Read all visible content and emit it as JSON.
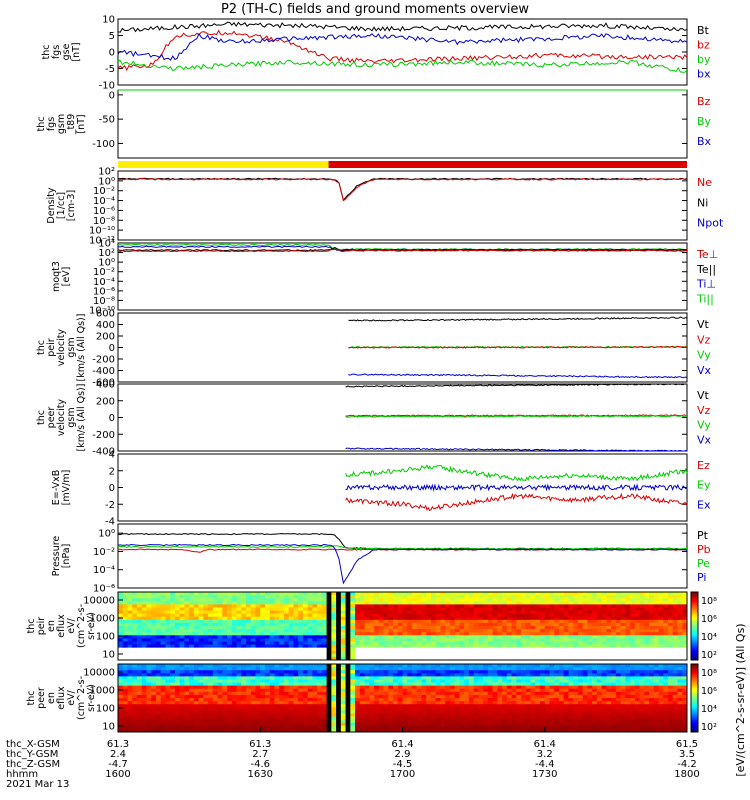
{
  "title": "P2 (TH-C) fields and ground moments overview",
  "colors": {
    "black": "#000000",
    "red": "#dd0000",
    "green": "#00cc00",
    "blue": "#0000cc",
    "yellow": "#ffee00"
  },
  "chart_data": [
    {
      "type": "line",
      "ylabel": [
        "thc",
        "fgs",
        "gse",
        "[nT]"
      ],
      "ylim": [
        -10,
        10
      ],
      "ticks": [
        {
          "v": 10,
          "t": "10"
        },
        {
          "v": 5,
          "t": "5"
        },
        {
          "v": 0,
          "t": "0"
        },
        {
          "v": -5,
          "t": "-5"
        },
        {
          "v": -10,
          "t": "-10"
        }
      ],
      "legend": [
        {
          "label": "Bt",
          "color": "black"
        },
        {
          "label": "bz",
          "color": "red"
        },
        {
          "label": "by",
          "color": "green"
        },
        {
          "label": "bx",
          "color": "blue"
        }
      ],
      "series": [
        {
          "name": "Bt",
          "color": "black",
          "x": [
            0,
            0.08,
            0.2,
            0.35,
            0.45,
            0.55,
            0.7,
            0.85,
            1
          ],
          "y": [
            6.5,
            7.3,
            8.5,
            7.8,
            7.0,
            7.2,
            7.6,
            8.1,
            6.5
          ]
        },
        {
          "name": "bz",
          "color": "red",
          "x": [
            0,
            0.06,
            0.1,
            0.2,
            0.3,
            0.37,
            0.45,
            0.6,
            0.75,
            0.9,
            1
          ],
          "y": [
            -5,
            -4,
            5,
            6,
            3,
            -2,
            -3,
            -2,
            -1,
            -1.5,
            -1.5
          ]
        },
        {
          "name": "by",
          "color": "green",
          "x": [
            0,
            0.1,
            0.2,
            0.3,
            0.45,
            0.6,
            0.75,
            0.9,
            1
          ],
          "y": [
            -3,
            -5,
            -4,
            -3,
            -4,
            -3,
            -4,
            -3,
            -6
          ]
        },
        {
          "name": "bx",
          "color": "blue",
          "x": [
            0,
            0.1,
            0.14,
            0.2,
            0.3,
            0.45,
            0.6,
            0.75,
            0.85,
            1
          ],
          "y": [
            0,
            -2,
            5,
            3,
            4,
            5,
            3,
            4,
            5,
            3
          ]
        }
      ]
    },
    {
      "type": "line",
      "ylabel": [
        "thc",
        "fgs",
        "gsm",
        "_t89",
        "[nT]"
      ],
      "ylim": [
        -130,
        10
      ],
      "ticks": [
        {
          "v": 0,
          "t": "0"
        },
        {
          "v": -50,
          "t": "-50"
        },
        {
          "v": -100,
          "t": "-100"
        }
      ],
      "legend": [
        {
          "label": "Bz",
          "color": "red"
        },
        {
          "label": "By",
          "color": "green"
        },
        {
          "label": "Bx",
          "color": "blue"
        }
      ],
      "series": [
        {
          "name": "By",
          "color": "green",
          "x": [
            0,
            0.03,
            0.1,
            0.3,
            0.5,
            0.7,
            0.9,
            1
          ],
          "y": [
            15,
            18,
            20,
            19,
            20,
            19,
            20,
            18
          ]
        }
      ]
    },
    {
      "type": "bar",
      "segments": [
        {
          "from": 0,
          "to": 0.37,
          "color": "yellow"
        },
        {
          "from": 0.37,
          "to": 1,
          "color": "red"
        }
      ]
    },
    {
      "type": "line",
      "scale": "log",
      "ylabel": [
        "Density",
        "[1/cc]",
        "[cm-3]"
      ],
      "ylim": [
        -12,
        2
      ],
      "ticks": [
        {
          "v": 2,
          "t": "10²"
        },
        {
          "v": 0,
          "t": "10⁰"
        },
        {
          "v": -2,
          "t": "10⁻²"
        },
        {
          "v": -4,
          "t": "10⁻⁴"
        },
        {
          "v": -6,
          "t": "10⁻⁶"
        },
        {
          "v": -8,
          "t": "10⁻⁸"
        },
        {
          "v": -10,
          "t": "10⁻¹⁰"
        },
        {
          "v": -12,
          "t": "10⁻¹²"
        }
      ],
      "legend": [
        {
          "label": "Ne",
          "color": "red"
        },
        {
          "label": "Ni",
          "color": "black"
        },
        {
          "label": "Npot",
          "color": "blue"
        }
      ],
      "series": [
        {
          "name": "Ni",
          "color": "black",
          "x": [
            0,
            0.37,
            0.38,
            0.39,
            0.395,
            0.42,
            0.45,
            1
          ],
          "y": [
            0.4,
            0.4,
            0.2,
            -0.4,
            -4,
            -1,
            0.4,
            0.4
          ]
        },
        {
          "name": "Ne",
          "color": "red",
          "x": [
            0,
            0.37,
            0.38,
            0.39,
            0.395,
            0.42,
            0.45,
            1
          ],
          "y": [
            0.3,
            0.3,
            0.1,
            -0.6,
            -4.2,
            -1.2,
            0.3,
            0.3
          ]
        }
      ]
    },
    {
      "type": "line",
      "scale": "log",
      "ylabel": [
        "moqt3",
        "[eV]"
      ],
      "ylim": [
        -10,
        4
      ],
      "ticks": [
        {
          "v": 4,
          "t": "10⁴"
        },
        {
          "v": 2,
          "t": "10²"
        },
        {
          "v": 0,
          "t": "10⁰"
        },
        {
          "v": -2,
          "t": "10⁻²"
        },
        {
          "v": -4,
          "t": "10⁻⁴"
        },
        {
          "v": -6,
          "t": "10⁻⁶"
        },
        {
          "v": -8,
          "t": "10⁻⁸"
        },
        {
          "v": -10,
          "t": "10⁻¹⁰"
        }
      ],
      "legend": [
        {
          "label": "Te⊥",
          "color": "red"
        },
        {
          "label": "Te||",
          "color": "black"
        },
        {
          "label": "Ti⊥",
          "color": "blue"
        },
        {
          "label": "Ti||",
          "color": "green"
        }
      ],
      "series": [
        {
          "name": "Ti||",
          "color": "green",
          "x": [
            0,
            0.37,
            0.38,
            0.395,
            0.4,
            1
          ],
          "y": [
            3.6,
            3.6,
            2.8,
            2.6,
            2.7,
            2.7
          ]
        },
        {
          "name": "Ti⊥",
          "color": "blue",
          "x": [
            0,
            0.37,
            0.38,
            0.395,
            0.4,
            1
          ],
          "y": [
            3.2,
            3.2,
            2.6,
            2.5,
            2.6,
            2.6
          ]
        },
        {
          "name": "Te||",
          "color": "black",
          "x": [
            0,
            0.37,
            0.38,
            0.395,
            0.4,
            1
          ],
          "y": [
            2.5,
            2.5,
            3.0,
            2.3,
            2.5,
            2.5
          ]
        },
        {
          "name": "Te⊥",
          "color": "red",
          "x": [
            0,
            0.37,
            0.38,
            0.395,
            0.4,
            1
          ],
          "y": [
            2.3,
            2.3,
            2.8,
            2.2,
            2.4,
            2.4
          ]
        }
      ]
    },
    {
      "type": "line",
      "ylabel": [
        "thc",
        "peir",
        "velocity",
        "gsm",
        "[km/s (All Qs)]"
      ],
      "ylim": [
        -600,
        600
      ],
      "ticks": [
        {
          "v": 600,
          "t": "600"
        },
        {
          "v": 400,
          "t": "400"
        },
        {
          "v": 200,
          "t": "200"
        },
        {
          "v": 0,
          "t": "0"
        },
        {
          "v": -200,
          "t": "-200"
        },
        {
          "v": -400,
          "t": "-400"
        },
        {
          "v": -600,
          "t": "-600"
        }
      ],
      "legend": [
        {
          "label": "Vt",
          "color": "black"
        },
        {
          "label": "Vz",
          "color": "red"
        },
        {
          "label": "Vy",
          "color": "green"
        },
        {
          "label": "Vx",
          "color": "blue"
        }
      ],
      "series": [
        {
          "name": "Vt",
          "color": "black",
          "x": [
            0.405,
            0.6,
            0.8,
            1
          ],
          "y": [
            470,
            480,
            500,
            520
          ]
        },
        {
          "name": "Vy",
          "color": "green",
          "x": [
            0.405,
            1
          ],
          "y": [
            5,
            10
          ]
        },
        {
          "name": "Vz",
          "color": "red",
          "x": [
            0.405,
            0.6,
            1
          ],
          "y": [
            0,
            0,
            10
          ]
        },
        {
          "name": "Vx",
          "color": "blue",
          "x": [
            0.405,
            0.6,
            0.8,
            1
          ],
          "y": [
            -470,
            -480,
            -500,
            -520
          ]
        }
      ]
    },
    {
      "type": "line",
      "ylabel": [
        "thc",
        "peer",
        "velocity",
        "gsm",
        "[km/s (All Qs)]"
      ],
      "ylim": [
        -400,
        400
      ],
      "ticks": [
        {
          "v": 400,
          "t": "400"
        },
        {
          "v": 200,
          "t": "200"
        },
        {
          "v": 0,
          "t": "0"
        },
        {
          "v": -200,
          "t": "-200"
        },
        {
          "v": -400,
          "t": "-400"
        }
      ],
      "legend": [
        {
          "label": "Vt",
          "color": "black"
        },
        {
          "label": "Vz",
          "color": "red"
        },
        {
          "label": "Vy",
          "color": "green"
        },
        {
          "label": "Vx",
          "color": "blue"
        }
      ],
      "series": [
        {
          "name": "Vt",
          "color": "black",
          "x": [
            0.4,
            0.6,
            0.8,
            1
          ],
          "y": [
            370,
            380,
            390,
            400
          ]
        },
        {
          "name": "Vz",
          "color": "red",
          "x": [
            0.4,
            1
          ],
          "y": [
            20,
            25
          ]
        },
        {
          "name": "Vy",
          "color": "green",
          "x": [
            0.4,
            1
          ],
          "y": [
            10,
            15
          ]
        },
        {
          "name": "Vx",
          "color": "blue",
          "x": [
            0.4,
            0.6,
            0.8,
            1
          ],
          "y": [
            -370,
            -380,
            -390,
            -400
          ]
        }
      ]
    },
    {
      "type": "line",
      "ylabel": [
        "E=-VxB",
        "[mV/m]"
      ],
      "ylim": [
        -4,
        4
      ],
      "ticks": [
        {
          "v": 4,
          "t": "4"
        },
        {
          "v": 2,
          "t": "2"
        },
        {
          "v": 0,
          "t": "0"
        },
        {
          "v": -2,
          "t": "-2"
        },
        {
          "v": -4,
          "t": "-4"
        }
      ],
      "legend": [
        {
          "label": "Ez",
          "color": "red"
        },
        {
          "label": "Ey",
          "color": "green"
        },
        {
          "label": "Ex",
          "color": "blue"
        }
      ],
      "series": [
        {
          "name": "Ey",
          "color": "green",
          "x": [
            0.4,
            0.5,
            0.55,
            0.6,
            0.7,
            0.8,
            0.9,
            1
          ],
          "y": [
            1.5,
            2,
            2.5,
            2,
            1,
            1.5,
            1,
            2
          ]
        },
        {
          "name": "Ex",
          "color": "blue",
          "x": [
            0.4,
            1
          ],
          "y": [
            0,
            0
          ]
        },
        {
          "name": "Ez",
          "color": "red",
          "x": [
            0.4,
            0.5,
            0.55,
            0.6,
            0.7,
            0.8,
            0.9,
            1
          ],
          "y": [
            -1.5,
            -2,
            -2.5,
            -2,
            -1,
            -1.5,
            -1,
            -2
          ]
        }
      ]
    },
    {
      "type": "line",
      "scale": "log",
      "ylabel": [
        "Pressure",
        "[nPa]"
      ],
      "ylim": [
        -6,
        1
      ],
      "ticks": [
        {
          "v": 0,
          "t": "10⁰"
        },
        {
          "v": -2,
          "t": "10⁻²"
        },
        {
          "v": -4,
          "t": "10⁻⁴"
        },
        {
          "v": -6,
          "t": "10⁻⁶"
        }
      ],
      "legend": [
        {
          "label": "Pt",
          "color": "black"
        },
        {
          "label": "Pb",
          "color": "red"
        },
        {
          "label": "Pe",
          "color": "green"
        },
        {
          "label": "Pi",
          "color": "blue"
        }
      ],
      "series": [
        {
          "name": "Pt",
          "color": "black",
          "x": [
            0,
            0.37,
            0.38,
            0.39,
            0.4,
            0.45,
            1
          ],
          "y": [
            -0.1,
            -0.1,
            -0.2,
            -0.8,
            -1.6,
            -1.7,
            -1.7
          ]
        },
        {
          "name": "Pb",
          "color": "red",
          "x": [
            0,
            0.12,
            0.14,
            0.16,
            0.37,
            0.4,
            1
          ],
          "y": [
            -1.8,
            -1.8,
            -2.1,
            -1.8,
            -1.8,
            -1.8,
            -1.8
          ]
        },
        {
          "name": "Pe",
          "color": "green",
          "x": [
            0,
            0.37,
            0.39,
            0.4,
            0.45,
            1
          ],
          "y": [
            -1.5,
            -1.5,
            -1.4,
            -1.6,
            -1.7,
            -1.7
          ]
        },
        {
          "name": "Pi",
          "color": "blue",
          "x": [
            0,
            0.37,
            0.38,
            0.39,
            0.395,
            0.42,
            0.45,
            1
          ],
          "y": [
            -1.3,
            -1.3,
            -1.5,
            -3,
            -5.6,
            -3,
            -1.8,
            -1.8
          ]
        }
      ]
    },
    {
      "type": "heatmap",
      "ylabel": [
        "thc",
        "peir",
        "en",
        "eflux",
        "eV/",
        "(cm^2-s-",
        "sr-eV)"
      ],
      "yticks": [
        "10000",
        "1000",
        "100",
        "10"
      ],
      "colorbar_labels": [
        "10⁸",
        "10⁶",
        "10⁴",
        "10²"
      ]
    },
    {
      "type": "heatmap",
      "ylabel": [
        "thc",
        "peer",
        "en",
        "eflux",
        "eV/",
        "(cm^2-s-",
        "sr-eV)"
      ],
      "yticks": [
        "10000",
        "1000",
        "100",
        "10"
      ],
      "colorbar_labels": [
        "10⁸",
        "10⁶",
        "10⁴",
        "10²"
      ]
    }
  ],
  "colorbar_title": "[eV/(cm^2-s-sr-eV)] (All Qs)",
  "x_axis": {
    "row_labels": [
      "thc_X-GSM",
      "thc_Y-GSM",
      "thc_Z-GSM",
      "hhmm",
      "2021 Mar 13"
    ],
    "ticks": [
      {
        "frac": 0,
        "values": [
          "61.3",
          "2.4",
          "-4.7",
          "1600"
        ]
      },
      {
        "frac": 0.25,
        "values": [
          "61.3",
          "2.7",
          "-4.6",
          "1630"
        ]
      },
      {
        "frac": 0.5,
        "values": [
          "61.4",
          "2.9",
          "-4.5",
          "1700"
        ]
      },
      {
        "frac": 0.75,
        "values": [
          "61.4",
          "3.2",
          "-4.4",
          "1730"
        ]
      },
      {
        "frac": 1,
        "values": [
          "61.5",
          "3.5",
          "-4.2",
          "1800"
        ]
      }
    ]
  }
}
